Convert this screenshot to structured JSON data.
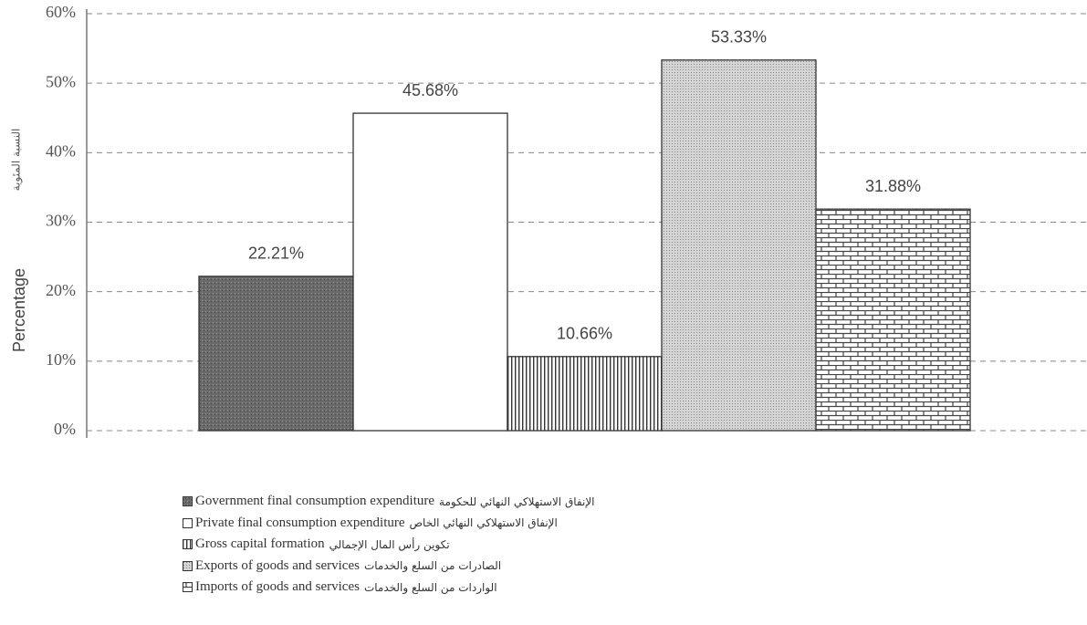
{
  "chart_data": {
    "type": "bar",
    "ylabel": "Percentage",
    "ylabel_ar": "النسبة المئوية",
    "ylim": [
      0,
      60
    ],
    "yticks": [
      {
        "value": 0,
        "label": "0%"
      },
      {
        "value": 10,
        "label": "10%"
      },
      {
        "value": 20,
        "label": "20%"
      },
      {
        "value": 30,
        "label": "30%"
      },
      {
        "value": 40,
        "label": "40%"
      },
      {
        "value": 50,
        "label": "50%"
      },
      {
        "value": 60,
        "label": "60%"
      }
    ],
    "grid": true,
    "series": [
      {
        "name": "Government final consumption expenditure",
        "name_ar": "الإنفاق الاستهلاكي النهائي للحكومة",
        "color": "#6a6a6a",
        "pattern": "stipple-dark",
        "values": [
          22.21
        ],
        "value_labels": [
          "22.21%"
        ]
      },
      {
        "name": "Private final consumption expenditure",
        "name_ar": "الإنفاق الاستهلاكي النهائي الخاص",
        "color": "#ffffff",
        "pattern": "none",
        "values": [
          45.68
        ],
        "value_labels": [
          "45.68%"
        ]
      },
      {
        "name": "Gross capital formation",
        "name_ar": "تكوين رأس المال الإجمالي",
        "color": "#ffffff",
        "pattern": "vertical",
        "values": [
          10.66
        ],
        "value_labels": [
          "10.66%"
        ]
      },
      {
        "name": "Exports of goods and services",
        "name_ar": "الصادرات من السلع والخدمات",
        "color": "#d4d4d4",
        "pattern": "stipple-light",
        "values": [
          53.33
        ],
        "value_labels": [
          "53.33%"
        ]
      },
      {
        "name": "Imports of goods and services",
        "name_ar": "الواردات من السلع والخدمات",
        "color": "#ffffff",
        "pattern": "brick",
        "values": [
          31.88
        ],
        "value_labels": [
          "31.88%"
        ]
      }
    ]
  }
}
